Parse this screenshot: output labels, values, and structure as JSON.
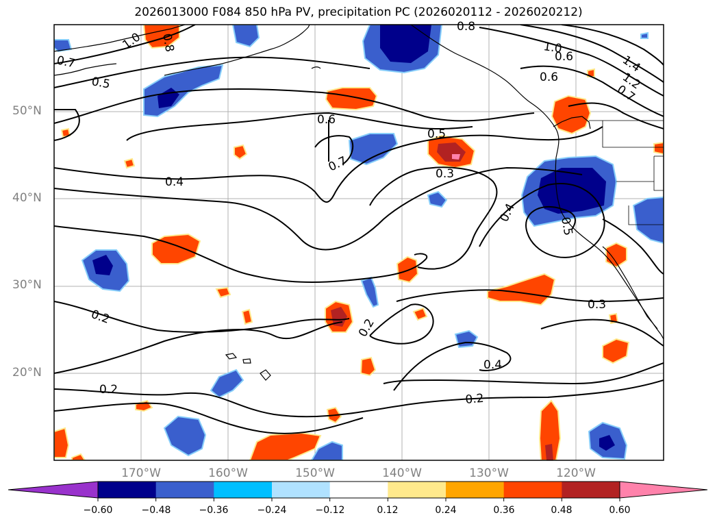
{
  "title": "2026013000 F084 850 hPa PV, precipitation PC (2026020112 - 2026020212)",
  "latitude_labels": [
    "50°N",
    "40°N",
    "30°N",
    "20°N"
  ],
  "longitude_labels": [
    "170°W",
    "160°W",
    "150°W",
    "140°W",
    "130°W",
    "120°W"
  ],
  "contour_labels": [
    "0.8",
    "1.0",
    "0.7",
    "0.5",
    "0.6",
    "1.4",
    "1.2",
    "1.0",
    "0.6",
    "0.7",
    "0.7",
    "0.5",
    "0.4",
    "0.3",
    "0.4",
    "0.5",
    "0.2",
    "0.2",
    "0.3",
    "0.4",
    "0.2",
    "0.2",
    "0.6",
    "0.8"
  ],
  "colorbar": {
    "tick_labels": [
      "−0.60",
      "−0.48",
      "−0.36",
      "−0.24",
      "−0.12",
      "0.12",
      "0.24",
      "0.36",
      "0.48",
      "0.60"
    ],
    "colors": [
      "#9932cc",
      "#00008b",
      "#3a5fcd",
      "#00bfff",
      "#b0e2ff",
      "#ffffff",
      "#ffe98c",
      "#ffa500",
      "#ff4500",
      "#b22222",
      "#ff82ab"
    ]
  }
}
